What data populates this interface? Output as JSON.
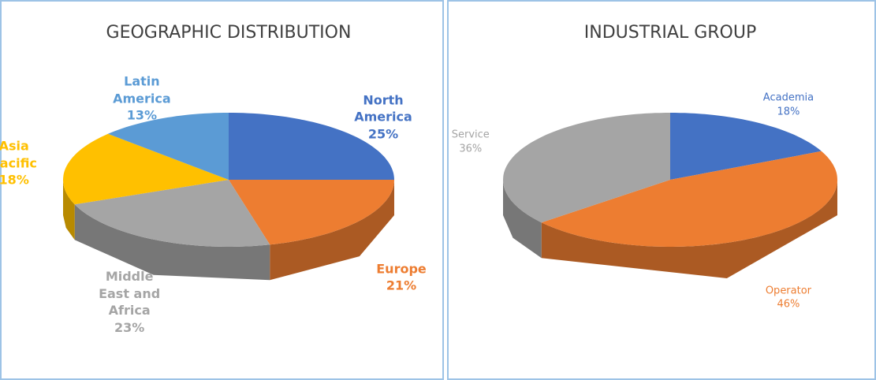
{
  "chart_data": [
    {
      "type": "pie",
      "title": "GEOGRAPHIC DISTRIBUTION",
      "categories": [
        "North America",
        "Europe",
        "Middle East and Africa",
        "Asia Pacific",
        "Latin America"
      ],
      "values": [
        25,
        21,
        23,
        18,
        13
      ],
      "value_labels": [
        "25%",
        "21%",
        "23%",
        "18%",
        "13%"
      ],
      "colors": [
        "#4472c4",
        "#ed7d31",
        "#a5a5a5",
        "#ffc000",
        "#5b9bd5"
      ]
    },
    {
      "type": "pie",
      "title": "INDUSTRIAL GROUP",
      "categories": [
        "Academia",
        "Operator",
        "Service"
      ],
      "values": [
        18,
        46,
        36
      ],
      "value_labels": [
        "18%",
        "46%",
        "36%"
      ],
      "colors": [
        "#4472c4",
        "#ed7d31",
        "#a5a5a5"
      ]
    }
  ]
}
